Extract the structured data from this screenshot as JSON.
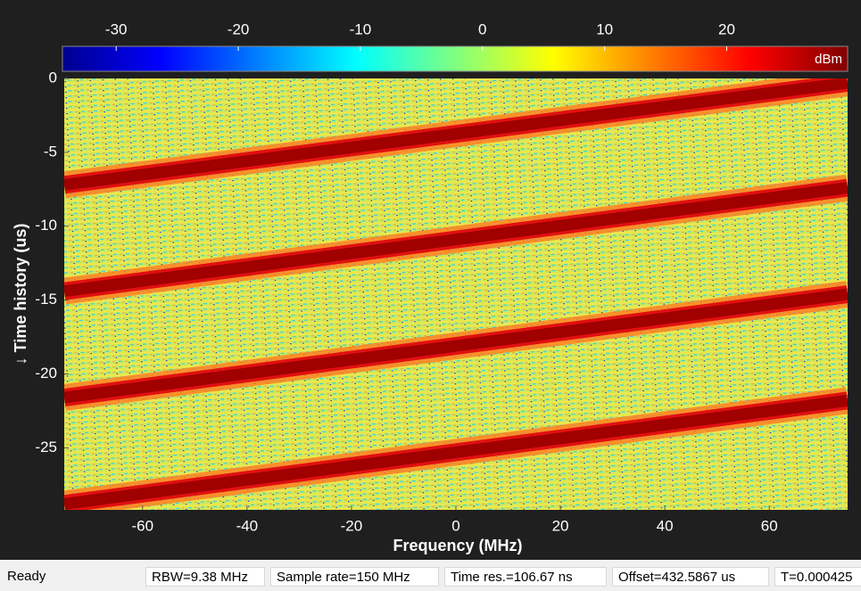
{
  "chart_data": {
    "type": "spectrogram",
    "colorbar": {
      "label": "dBm",
      "clim": [
        -34.4,
        29.9
      ],
      "ticks": [
        -30,
        -20,
        -10,
        0,
        10,
        20
      ]
    },
    "xlabel": "Frequency (MHz)",
    "ylabel": "↓ Time history (us)",
    "xlim": [
      -75,
      75
    ],
    "xticks": [
      -60,
      -40,
      -20,
      0,
      20,
      40,
      60
    ],
    "ylim": [
      -29.2,
      0
    ],
    "yticks": [
      0,
      -5,
      -10,
      -15,
      -20,
      -25
    ],
    "x": [
      -75,
      75
    ],
    "series": [
      {
        "color": "#a00000",
        "values": [
          -7.2,
          -0.3
        ]
      },
      {
        "color": "#a00000",
        "values": [
          -14.4,
          -7.4
        ]
      },
      {
        "color": "#a00000",
        "values": [
          -21.6,
          -14.6
        ]
      },
      {
        "color": "#a00000",
        "values": [
          -28.8,
          -21.8
        ]
      }
    ]
  },
  "status_bar": {
    "state": "Ready",
    "fields": [
      "RBW=9.38 MHz",
      "Sample rate=150 MHz",
      "Time res.=106.67 ns",
      "Offset=432.5867 us",
      "T=0.000425"
    ]
  }
}
